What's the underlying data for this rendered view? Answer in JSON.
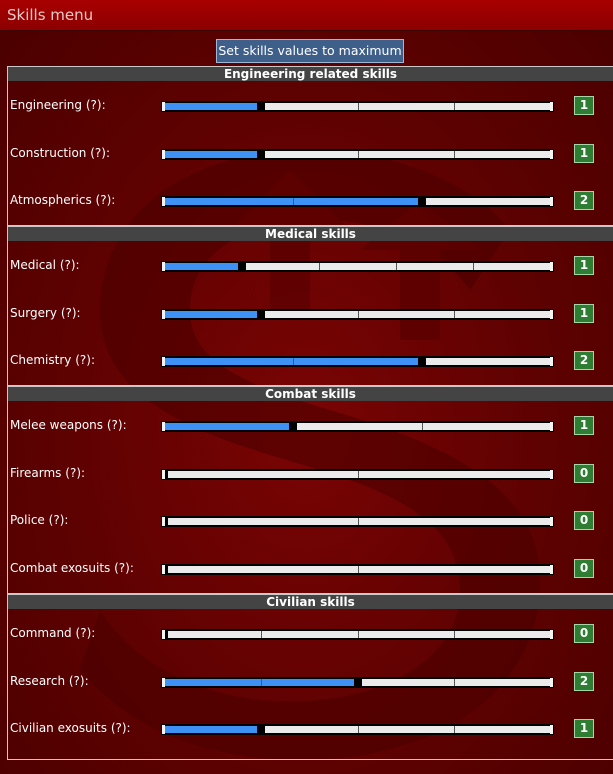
{
  "window": {
    "title": "Skills menu"
  },
  "toolbar": {
    "max_button_label": "Set skills values to maximum"
  },
  "help_marker": "(?)",
  "sections": [
    {
      "id": "engineering",
      "title": "Engineering related skills",
      "skills": [
        {
          "name": "Engineering",
          "level": 1,
          "max": 4
        },
        {
          "name": "Construction",
          "level": 1,
          "max": 4
        },
        {
          "name": "Atmospherics",
          "level": 2,
          "max": 3
        }
      ]
    },
    {
      "id": "medical",
      "title": "Medical skills",
      "skills": [
        {
          "name": "Medical",
          "level": 1,
          "max": 5
        },
        {
          "name": "Surgery",
          "level": 1,
          "max": 4
        },
        {
          "name": "Chemistry",
          "level": 2,
          "max": 3
        }
      ]
    },
    {
      "id": "combat",
      "title": "Combat skills",
      "skills": [
        {
          "name": "Melee weapons",
          "level": 1,
          "max": 3
        },
        {
          "name": "Firearms",
          "level": 0,
          "max": 2
        },
        {
          "name": "Police",
          "level": 0,
          "max": 2
        },
        {
          "name": "Combat exosuits",
          "level": 0,
          "max": 2
        }
      ]
    },
    {
      "id": "civilian",
      "title": "Civilian skills",
      "skills": [
        {
          "name": "Command",
          "level": 0,
          "max": 4
        },
        {
          "name": "Research",
          "level": 2,
          "max": 4
        },
        {
          "name": "Civilian exosuits",
          "level": 1,
          "max": 4
        }
      ]
    }
  ],
  "colors": {
    "fill": "#3f92f5",
    "empty": "#ebebeb",
    "badge": "#2f7d32",
    "header": "#444444"
  }
}
